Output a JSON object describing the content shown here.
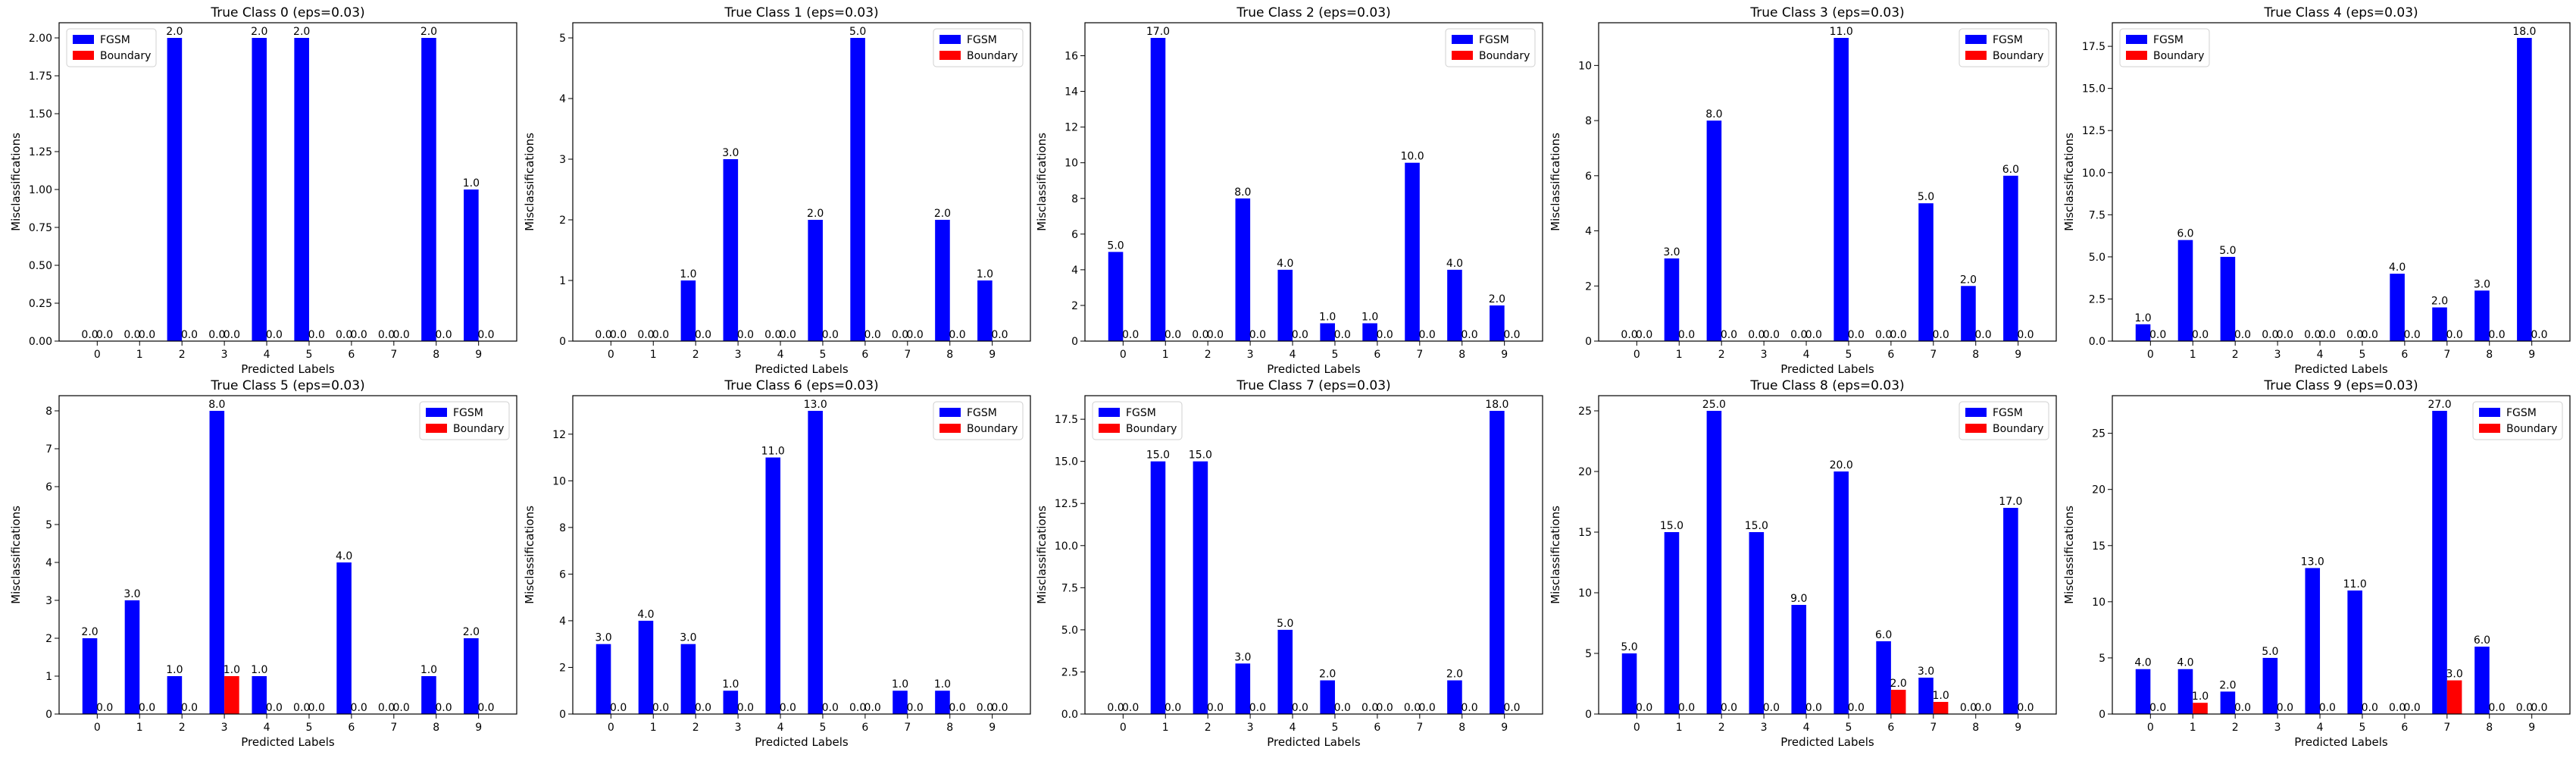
{
  "legend_labels": {
    "fgsm": "FGSM",
    "boundary": "Boundary"
  },
  "colors": {
    "fgsm": "#0000ff",
    "boundary": "#ff0000"
  },
  "chart_data": [
    {
      "type": "bar",
      "title": "True Class 0 (eps=0.03)",
      "xlabel": "Predicted Labels",
      "ylabel": "Misclassifications",
      "categories": [
        "0",
        "1",
        "2",
        "3",
        "4",
        "5",
        "6",
        "7",
        "8",
        "9"
      ],
      "legend_loc": "upper-left",
      "ylim": [
        0,
        2.1
      ],
      "yticks": [
        "0.00",
        "0.25",
        "0.50",
        "0.75",
        "1.00",
        "1.25",
        "1.50",
        "1.75",
        "2.00"
      ],
      "series": [
        {
          "name": "FGSM",
          "values": [
            0,
            0,
            2,
            0,
            2,
            2,
            0,
            0,
            2,
            1
          ]
        },
        {
          "name": "Boundary",
          "values": [
            0,
            0,
            0,
            0,
            0,
            0,
            0,
            0,
            0,
            0
          ]
        }
      ],
      "labels_fgsm": [
        "0.0",
        "0.0",
        "2.0",
        "0.0",
        "2.0",
        "2.0",
        "0.0",
        "0.0",
        "2.0",
        "1.0"
      ],
      "labels_boundary": [
        "0.0",
        "0.0",
        "0.0",
        "0.0",
        "0.0",
        "0.0",
        "0.0",
        "0.0",
        "0.0",
        "0.0"
      ]
    },
    {
      "type": "bar",
      "title": "True Class 1 (eps=0.03)",
      "xlabel": "Predicted Labels",
      "ylabel": "Misclassifications",
      "categories": [
        "0",
        "1",
        "2",
        "3",
        "4",
        "5",
        "6",
        "7",
        "8",
        "9"
      ],
      "legend_loc": "upper-right",
      "ylim": [
        0,
        5.25
      ],
      "yticks": [
        "0",
        "1",
        "2",
        "3",
        "4",
        "5"
      ],
      "series": [
        {
          "name": "FGSM",
          "values": [
            0,
            0,
            1,
            3,
            0,
            2,
            5,
            0,
            2,
            1
          ]
        },
        {
          "name": "Boundary",
          "values": [
            0,
            0,
            0,
            0,
            0,
            0,
            0,
            0,
            0,
            0
          ]
        }
      ],
      "labels_fgsm": [
        "0.0",
        "0.0",
        "1.0",
        "3.0",
        "0.0",
        "2.0",
        "5.0",
        "0.0",
        "2.0",
        "1.0"
      ],
      "labels_boundary": [
        "0.0",
        "0.0",
        "0.0",
        "0.0",
        "0.0",
        "0.0",
        "0.0",
        "0.0",
        "0.0",
        "0.0"
      ]
    },
    {
      "type": "bar",
      "title": "True Class 2 (eps=0.03)",
      "xlabel": "Predicted Labels",
      "ylabel": "Misclassifications",
      "categories": [
        "0",
        "1",
        "2",
        "3",
        "4",
        "5",
        "6",
        "7",
        "8",
        "9"
      ],
      "legend_loc": "upper-right",
      "ylim": [
        0,
        17.85
      ],
      "yticks": [
        "0",
        "2",
        "4",
        "6",
        "8",
        "10",
        "12",
        "14",
        "16"
      ],
      "series": [
        {
          "name": "FGSM",
          "values": [
            5,
            17,
            0,
            8,
            4,
            1,
            1,
            10,
            4,
            2
          ]
        },
        {
          "name": "Boundary",
          "values": [
            0,
            0,
            0,
            0,
            0,
            0,
            0,
            0,
            0,
            0
          ]
        }
      ],
      "labels_fgsm": [
        "5.0",
        "17.0",
        "0.0",
        "8.0",
        "4.0",
        "1.0",
        "1.0",
        "10.0",
        "4.0",
        "2.0"
      ],
      "labels_boundary": [
        "0.0",
        "0.0",
        "0.0",
        "0.0",
        "0.0",
        "0.0",
        "0.0",
        "0.0",
        "0.0",
        "0.0"
      ]
    },
    {
      "type": "bar",
      "title": "True Class 3 (eps=0.03)",
      "xlabel": "Predicted Labels",
      "ylabel": "Misclassifications",
      "categories": [
        "0",
        "1",
        "2",
        "3",
        "4",
        "5",
        "6",
        "7",
        "8",
        "9"
      ],
      "legend_loc": "upper-right",
      "ylim": [
        0,
        11.55
      ],
      "yticks": [
        "0",
        "2",
        "4",
        "6",
        "8",
        "10"
      ],
      "series": [
        {
          "name": "FGSM",
          "values": [
            0,
            3,
            8,
            0,
            0,
            11,
            0,
            5,
            2,
            6
          ]
        },
        {
          "name": "Boundary",
          "values": [
            0,
            0,
            0,
            0,
            0,
            0,
            0,
            0,
            0,
            0
          ]
        }
      ],
      "labels_fgsm": [
        "0.0",
        "3.0",
        "8.0",
        "0.0",
        "0.0",
        "11.0",
        "0.0",
        "5.0",
        "2.0",
        "6.0"
      ],
      "labels_boundary": [
        "0.0",
        "0.0",
        "0.0",
        "0.0",
        "0.0",
        "0.0",
        "0.0",
        "0.0",
        "0.0",
        "0.0"
      ]
    },
    {
      "type": "bar",
      "title": "True Class 4 (eps=0.03)",
      "xlabel": "Predicted Labels",
      "ylabel": "Misclassifications",
      "categories": [
        "0",
        "1",
        "2",
        "3",
        "4",
        "5",
        "6",
        "7",
        "8",
        "9"
      ],
      "legend_loc": "upper-left",
      "ylim": [
        0,
        18.9
      ],
      "yticks": [
        "0.0",
        "2.5",
        "5.0",
        "7.5",
        "10.0",
        "12.5",
        "15.0",
        "17.5"
      ],
      "series": [
        {
          "name": "FGSM",
          "values": [
            1,
            6,
            5,
            0,
            0,
            0,
            4,
            2,
            3,
            18
          ]
        },
        {
          "name": "Boundary",
          "values": [
            0,
            0,
            0,
            0,
            0,
            0,
            0,
            0,
            0,
            0
          ]
        }
      ],
      "labels_fgsm": [
        "1.0",
        "6.0",
        "5.0",
        "0.0",
        "0.0",
        "0.0",
        "4.0",
        "2.0",
        "3.0",
        "18.0"
      ],
      "labels_boundary": [
        "0.0",
        "0.0",
        "0.0",
        "0.0",
        "0.0",
        "0.0",
        "0.0",
        "0.0",
        "0.0",
        "0.0"
      ]
    },
    {
      "type": "bar",
      "title": "True Class 5 (eps=0.03)",
      "xlabel": "Predicted Labels",
      "ylabel": "Misclassifications",
      "categories": [
        "0",
        "1",
        "2",
        "3",
        "4",
        "5",
        "6",
        "7",
        "8",
        "9"
      ],
      "legend_loc": "upper-right",
      "ylim": [
        0,
        8.4
      ],
      "yticks": [
        "0",
        "1",
        "2",
        "3",
        "4",
        "5",
        "6",
        "7",
        "8"
      ],
      "series": [
        {
          "name": "FGSM",
          "values": [
            2,
            3,
            1,
            8,
            1,
            0,
            4,
            0,
            1,
            2
          ]
        },
        {
          "name": "Boundary",
          "values": [
            0,
            0,
            0,
            1,
            0,
            0,
            0,
            0,
            0,
            0
          ]
        }
      ],
      "labels_fgsm": [
        "2.0",
        "3.0",
        "1.0",
        "8.0",
        "1.0",
        "0.0",
        "4.0",
        "0.0",
        "1.0",
        "2.0"
      ],
      "labels_boundary": [
        "0.0",
        "0.0",
        "0.0",
        "1.0",
        "0.0",
        "0.0",
        "0.0",
        "0.0",
        "0.0",
        "0.0"
      ]
    },
    {
      "type": "bar",
      "title": "True Class 6 (eps=0.03)",
      "xlabel": "Predicted Labels",
      "ylabel": "Misclassifications",
      "categories": [
        "0",
        "1",
        "2",
        "3",
        "4",
        "5",
        "6",
        "7",
        "8",
        "9"
      ],
      "legend_loc": "upper-right",
      "ylim": [
        0,
        13.65
      ],
      "yticks": [
        "0",
        "2",
        "4",
        "6",
        "8",
        "10",
        "12"
      ],
      "series": [
        {
          "name": "FGSM",
          "values": [
            3,
            4,
            3,
            1,
            11,
            13,
            0,
            1,
            1,
            0
          ]
        },
        {
          "name": "Boundary",
          "values": [
            0,
            0,
            0,
            0,
            0,
            0,
            0,
            0,
            0,
            0
          ]
        }
      ],
      "labels_fgsm": [
        "3.0",
        "4.0",
        "3.0",
        "1.0",
        "11.0",
        "13.0",
        "0.0",
        "1.0",
        "1.0",
        "0.0"
      ],
      "labels_boundary": [
        "0.0",
        "0.0",
        "0.0",
        "0.0",
        "0.0",
        "0.0",
        "0.0",
        "0.0",
        "0.0",
        "0.0"
      ]
    },
    {
      "type": "bar",
      "title": "True Class 7 (eps=0.03)",
      "xlabel": "Predicted Labels",
      "ylabel": "Misclassifications",
      "categories": [
        "0",
        "1",
        "2",
        "3",
        "4",
        "5",
        "6",
        "7",
        "8",
        "9"
      ],
      "legend_loc": "upper-left",
      "ylim": [
        0,
        18.9
      ],
      "yticks": [
        "0.0",
        "2.5",
        "5.0",
        "7.5",
        "10.0",
        "12.5",
        "15.0",
        "17.5"
      ],
      "series": [
        {
          "name": "FGSM",
          "values": [
            0,
            15,
            15,
            3,
            5,
            2,
            0,
            0,
            2,
            18
          ]
        },
        {
          "name": "Boundary",
          "values": [
            0,
            0,
            0,
            0,
            0,
            0,
            0,
            0,
            0,
            0
          ]
        }
      ],
      "labels_fgsm": [
        "0.0",
        "15.0",
        "15.0",
        "3.0",
        "5.0",
        "2.0",
        "0.0",
        "0.0",
        "2.0",
        "18.0"
      ],
      "labels_boundary": [
        "0.0",
        "0.0",
        "0.0",
        "0.0",
        "0.0",
        "0.0",
        "0.0",
        "0.0",
        "0.0",
        "0.0"
      ]
    },
    {
      "type": "bar",
      "title": "True Class 8 (eps=0.03)",
      "xlabel": "Predicted Labels",
      "ylabel": "Misclassifications",
      "categories": [
        "0",
        "1",
        "2",
        "3",
        "4",
        "5",
        "6",
        "7",
        "8",
        "9"
      ],
      "legend_loc": "upper-right",
      "ylim": [
        0,
        26.25
      ],
      "yticks": [
        "0",
        "5",
        "10",
        "15",
        "20",
        "25"
      ],
      "series": [
        {
          "name": "FGSM",
          "values": [
            5,
            15,
            25,
            15,
            9,
            20,
            6,
            3,
            0,
            17
          ]
        },
        {
          "name": "Boundary",
          "values": [
            0,
            0,
            0,
            0,
            0,
            0,
            2,
            1,
            0,
            0
          ]
        }
      ],
      "labels_fgsm": [
        "5.0",
        "15.0",
        "25.0",
        "15.0",
        "9.0",
        "20.0",
        "6.0",
        "3.0",
        "0.0",
        "17.0"
      ],
      "labels_boundary": [
        "0.0",
        "0.0",
        "0.0",
        "0.0",
        "0.0",
        "0.0",
        "2.0",
        "1.0",
        "0.0",
        "0.0"
      ]
    },
    {
      "type": "bar",
      "title": "True Class 9 (eps=0.03)",
      "xlabel": "Predicted Labels",
      "ylabel": "Misclassifications",
      "categories": [
        "0",
        "1",
        "2",
        "3",
        "4",
        "5",
        "6",
        "7",
        "8",
        "9"
      ],
      "legend_loc": "upper-right",
      "ylim": [
        0,
        28.35
      ],
      "yticks": [
        "0",
        "5",
        "10",
        "15",
        "20",
        "25"
      ],
      "series": [
        {
          "name": "FGSM",
          "values": [
            4,
            4,
            2,
            5,
            13,
            11,
            0,
            27,
            6,
            0
          ]
        },
        {
          "name": "Boundary",
          "values": [
            0,
            1,
            0,
            0,
            0,
            0,
            0,
            3,
            0,
            0
          ]
        }
      ],
      "labels_fgsm": [
        "4.0",
        "4.0",
        "2.0",
        "5.0",
        "13.0",
        "11.0",
        "0.0",
        "27.0",
        "6.0",
        "0.0"
      ],
      "labels_boundary": [
        "0.0",
        "1.0",
        "0.0",
        "0.0",
        "0.0",
        "0.0",
        "0.0",
        "3.0",
        "0.0",
        "0.0"
      ]
    }
  ]
}
